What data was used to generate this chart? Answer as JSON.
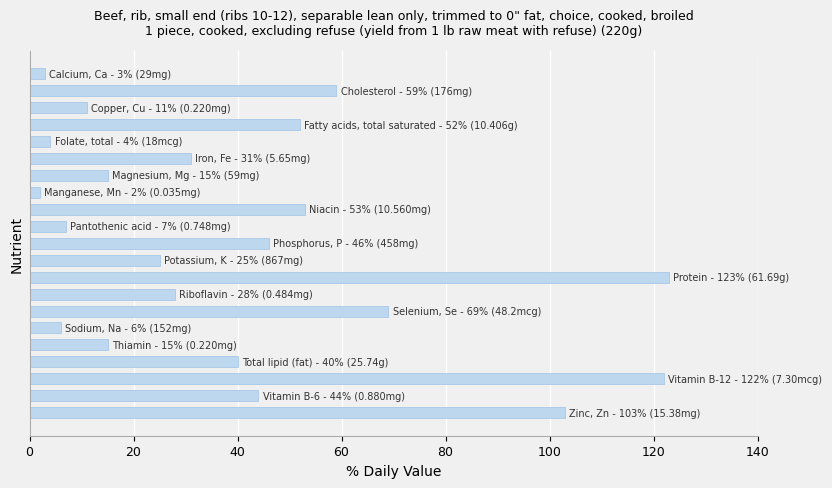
{
  "title": "Beef, rib, small end (ribs 10-12), separable lean only, trimmed to 0\" fat, choice, cooked, broiled\n1 piece, cooked, excluding refuse (yield from 1 lb raw meat with refuse) (220g)",
  "xlabel": "% Daily Value",
  "ylabel": "Nutrient",
  "xlim": [
    0,
    140
  ],
  "xticks": [
    0,
    20,
    40,
    60,
    80,
    100,
    120,
    140
  ],
  "bar_color": "#BDD7EE",
  "bar_edge_color": "#9DC3E6",
  "background_color": "#f0f0f0",
  "text_color": "#333333",
  "nutrients": [
    {
      "label": "Calcium, Ca - 3% (29mg)",
      "value": 3
    },
    {
      "label": "Cholesterol - 59% (176mg)",
      "value": 59
    },
    {
      "label": "Copper, Cu - 11% (0.220mg)",
      "value": 11
    },
    {
      "label": "Fatty acids, total saturated - 52% (10.406g)",
      "value": 52
    },
    {
      "label": "Folate, total - 4% (18mcg)",
      "value": 4
    },
    {
      "label": "Iron, Fe - 31% (5.65mg)",
      "value": 31
    },
    {
      "label": "Magnesium, Mg - 15% (59mg)",
      "value": 15
    },
    {
      "label": "Manganese, Mn - 2% (0.035mg)",
      "value": 2
    },
    {
      "label": "Niacin - 53% (10.560mg)",
      "value": 53
    },
    {
      "label": "Pantothenic acid - 7% (0.748mg)",
      "value": 7
    },
    {
      "label": "Phosphorus, P - 46% (458mg)",
      "value": 46
    },
    {
      "label": "Potassium, K - 25% (867mg)",
      "value": 25
    },
    {
      "label": "Protein - 123% (61.69g)",
      "value": 123
    },
    {
      "label": "Riboflavin - 28% (0.484mg)",
      "value": 28
    },
    {
      "label": "Selenium, Se - 69% (48.2mcg)",
      "value": 69
    },
    {
      "label": "Sodium, Na - 6% (152mg)",
      "value": 6
    },
    {
      "label": "Thiamin - 15% (0.220mg)",
      "value": 15
    },
    {
      "label": "Total lipid (fat) - 40% (25.74g)",
      "value": 40
    },
    {
      "label": "Vitamin B-12 - 122% (7.30mcg)",
      "value": 122
    },
    {
      "label": "Vitamin B-6 - 44% (0.880mg)",
      "value": 44
    },
    {
      "label": "Zinc, Zn - 103% (15.38mg)",
      "value": 103
    }
  ]
}
